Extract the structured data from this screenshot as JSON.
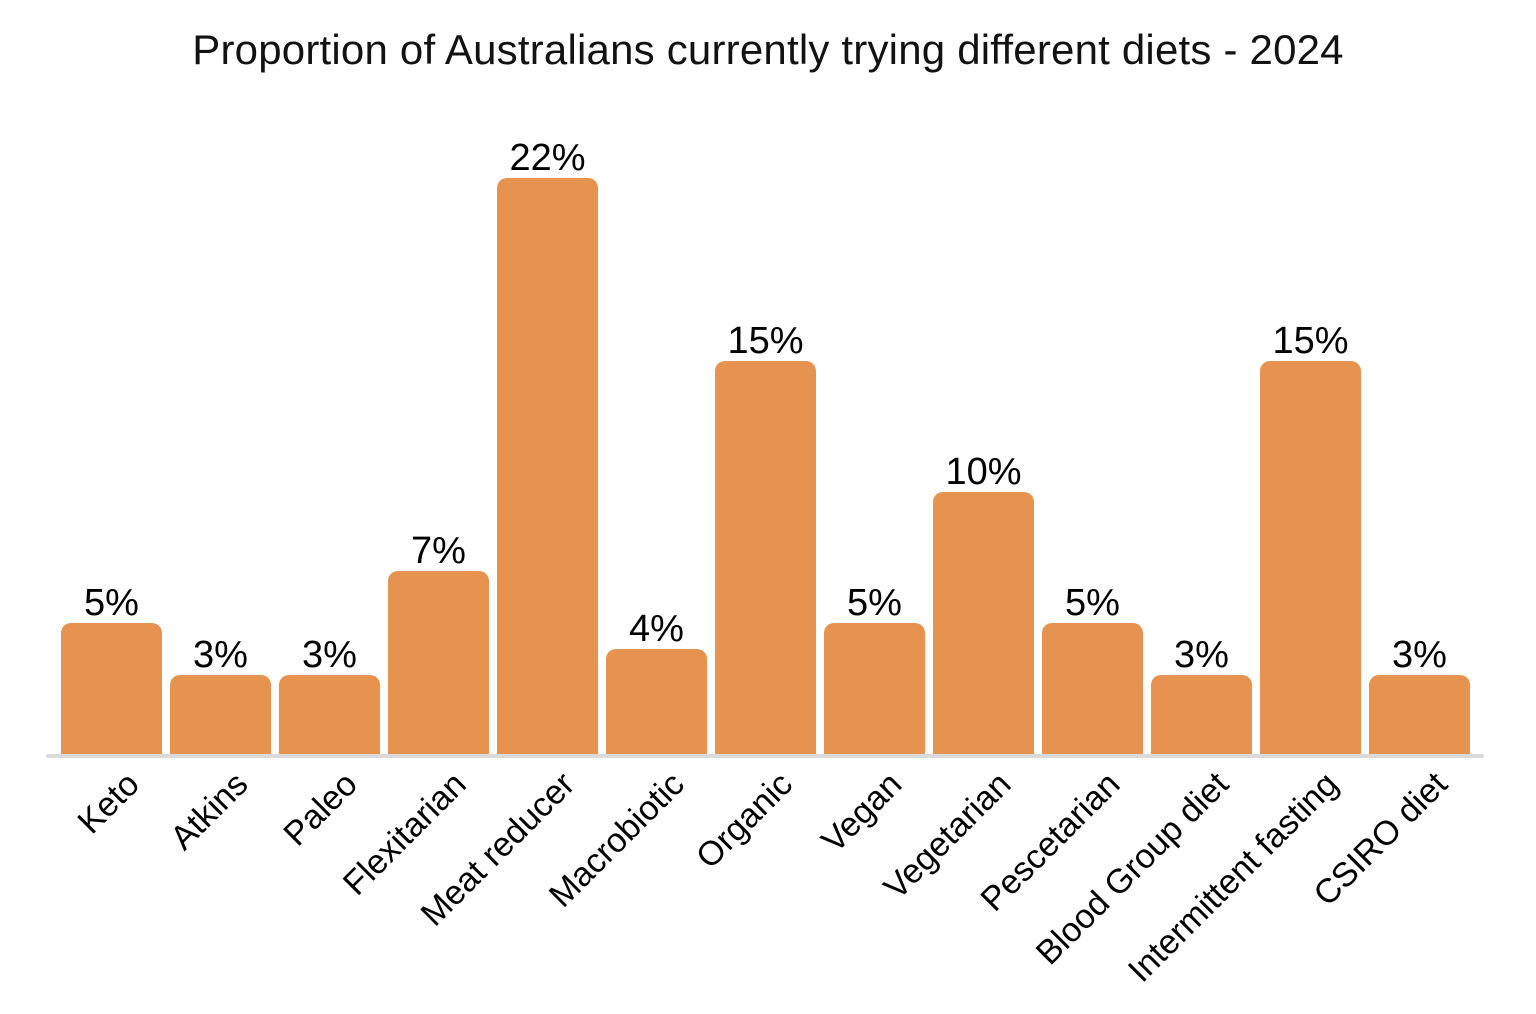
{
  "chart_data": {
    "type": "bar",
    "title": "Proportion of Australians currently trying different diets - 2024",
    "categories": [
      "Keto",
      "Atkins",
      "Paleo",
      "Flexitarian",
      "Meat reducer",
      "Macrobiotic",
      "Organic",
      "Vegan",
      "Vegetarian",
      "Pescetarian",
      "Blood Group diet",
      "Intermittent fasting",
      "CSIRO diet"
    ],
    "values": [
      5,
      3,
      3,
      7,
      22,
      4,
      15,
      5,
      10,
      5,
      3,
      15,
      3
    ],
    "value_labels": [
      "5%",
      "3%",
      "3%",
      "7%",
      "22%",
      "4%",
      "15%",
      "5%",
      "10%",
      "5%",
      "3%",
      "15%",
      "3%"
    ],
    "xlabel": "",
    "ylabel": "",
    "ylim": [
      0,
      22
    ],
    "grid": false,
    "legend_position": "none",
    "x_label_rotation_deg": -45,
    "colors": {
      "bar": "#E6934F",
      "baseline": "#DADADA",
      "text": "#000000",
      "title_text": "#121212",
      "background": "#FFFFFF"
    }
  }
}
